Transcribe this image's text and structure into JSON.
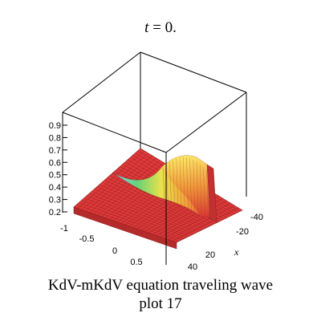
{
  "title": {
    "prefix": "t",
    "suffix": " = 0."
  },
  "caption": {
    "line1": "KdV-mKdV equation  traveling wave",
    "line2": "plot 17"
  },
  "colors": {
    "surface": "#e03a3a",
    "mesh": "#8a1c1c",
    "box": "#000000"
  },
  "chart_data": {
    "type": "surface",
    "title": "t = 0.",
    "axes": {
      "x": {
        "label": "x",
        "range": [
          -50,
          50
        ],
        "tick_labels": [
          "-40",
          "-20",
          "20",
          "40"
        ]
      },
      "y": {
        "label": "",
        "range": [
          -1,
          1
        ],
        "tick_labels": [
          "-1",
          "-0.5",
          "0",
          "0.5"
        ]
      },
      "z": {
        "label": "",
        "range": [
          0.2,
          0.9
        ],
        "tick_labels": [
          "0.2",
          "0.3",
          "0.4",
          "0.5",
          "0.6",
          "0.7",
          "0.8",
          "0.9"
        ]
      }
    },
    "surface": {
      "description_values": {
        "baseline": 0.25,
        "peak": 0.55,
        "wave_center_x": 0
      }
    }
  }
}
